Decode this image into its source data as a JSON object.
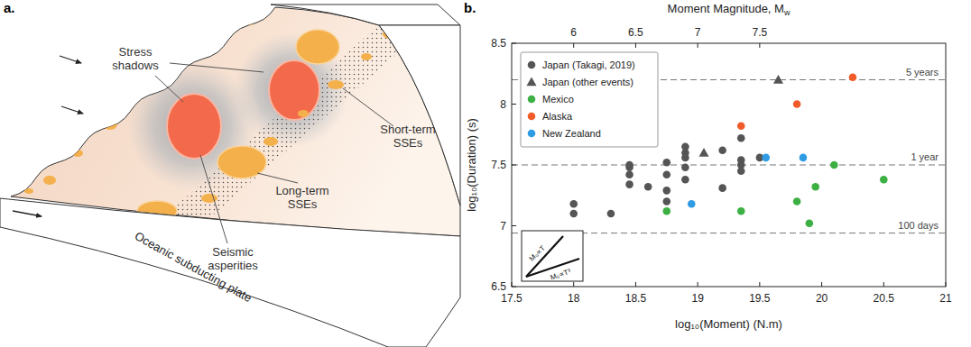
{
  "panel_labels": [
    "a.",
    "b."
  ],
  "diagram": {
    "labels": [
      "Stress shadows",
      "Seismic asperities",
      "Long-term SSEs",
      "Short-term SSEs"
    ],
    "plate": "Oceanic subducting plate"
  },
  "chart_data": {
    "type": "scatter",
    "x_label": "log₁₀(Moment) (N.m)",
    "y_label": "log₁₀(Duration) (s)",
    "x2_label": "Moment Magnitude, Mw",
    "xlim": [
      17.5,
      21
    ],
    "xticks": [
      17.5,
      18,
      18.5,
      19,
      19.5,
      20,
      20.5,
      21
    ],
    "ylim": [
      6.5,
      8.5
    ],
    "yticks": [
      6.5,
      7,
      7.5,
      8,
      8.5
    ],
    "x2lim": [
      5.5,
      9
    ],
    "x2ticks": [
      6,
      6.5,
      7,
      7.5
    ],
    "legend": "upper left",
    "reference_lines": [
      {
        "value": 8.2,
        "label": "5 years"
      },
      {
        "value": 7.5,
        "label": "1 year"
      },
      {
        "value": 6.94,
        "label": "100 days"
      }
    ],
    "inset_labels": [
      "M₀∝T",
      "M₀∝T³"
    ],
    "series": [
      {
        "name": "Japan (Takagi, 2019)",
        "color": "#555555",
        "marker": "circle",
        "x": [
          18.0,
          18.0,
          18.3,
          18.45,
          18.45,
          18.45,
          18.45,
          18.6,
          18.75,
          18.75,
          18.75,
          18.75,
          18.9,
          18.9,
          18.9,
          18.9,
          18.9,
          19.2,
          19.2,
          19.35,
          19.35,
          19.35,
          19.35,
          19.5
        ],
        "values": [
          7.18,
          7.1,
          7.1,
          7.5,
          7.48,
          7.42,
          7.34,
          7.32,
          7.52,
          7.42,
          7.29,
          7.2,
          7.65,
          7.6,
          7.56,
          7.48,
          7.38,
          7.62,
          7.31,
          7.72,
          7.54,
          7.5,
          7.45,
          7.56
        ]
      },
      {
        "name": "Japan (other events)",
        "color": "#555555",
        "marker": "triangle",
        "x": [
          19.05,
          19.65
        ],
        "values": [
          7.6,
          8.2
        ]
      },
      {
        "name": "Mexico",
        "color": "#3cb043",
        "marker": "circle",
        "x": [
          18.75,
          19.35,
          19.8,
          19.9,
          19.95,
          20.1,
          20.5
        ],
        "values": [
          7.12,
          7.12,
          7.2,
          7.02,
          7.32,
          7.5,
          7.38
        ]
      },
      {
        "name": "Alaska",
        "color": "#f15a29",
        "marker": "circle",
        "x": [
          19.35,
          19.8,
          20.25
        ],
        "values": [
          7.82,
          8.0,
          8.22
        ]
      },
      {
        "name": "New Zealand",
        "color": "#2f9be3",
        "marker": "circle",
        "x": [
          18.95,
          19.55,
          19.85
        ],
        "values": [
          7.18,
          7.56,
          7.56
        ]
      }
    ]
  }
}
